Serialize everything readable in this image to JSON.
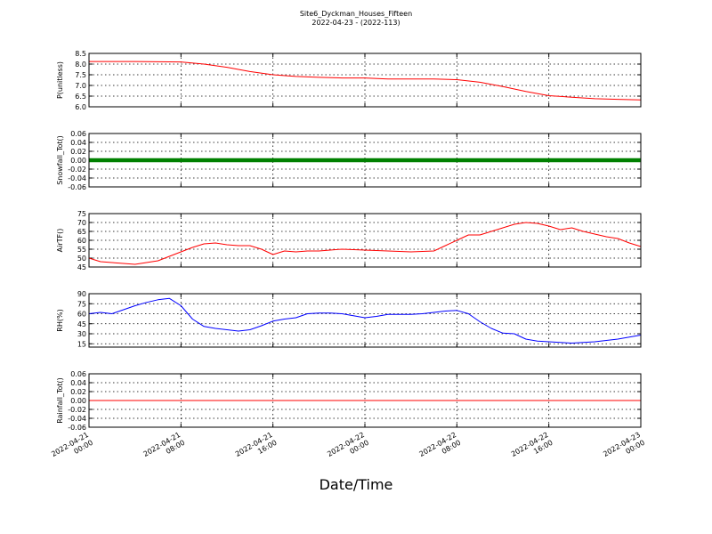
{
  "figure": {
    "title_line1": "Site6_Dyckman_Houses_Fifteen",
    "title_line2": "2022-04-23 - (2022-113)",
    "xlabel": "Date/Time"
  },
  "chart_data": [
    {
      "type": "line",
      "ylabel": "P(unitless)",
      "ylim": [
        6.0,
        8.5
      ],
      "yticks": [
        "6.0",
        "6.5",
        "7.0",
        "7.5",
        "8.0",
        "8.5"
      ],
      "color": "#ff0000",
      "grid": true,
      "x_hours": [
        0,
        4,
        8,
        10,
        12,
        14,
        16,
        18,
        20,
        22,
        24,
        26,
        30,
        32,
        34,
        36,
        38,
        40,
        42,
        44,
        46,
        48
      ],
      "values": [
        8.12,
        8.12,
        8.1,
        8.0,
        7.85,
        7.65,
        7.5,
        7.42,
        7.38,
        7.35,
        7.35,
        7.3,
        7.3,
        7.27,
        7.15,
        6.95,
        6.72,
        6.52,
        6.45,
        6.38,
        6.35,
        6.32
      ]
    },
    {
      "type": "line",
      "ylabel": "Snowfall_Tot()",
      "ylim": [
        -0.06,
        0.06
      ],
      "yticks": [
        "-0.06",
        "-0.04",
        "-0.02",
        "0.00",
        "0.02",
        "0.04",
        "0.06"
      ],
      "color": "#008000",
      "marker": true,
      "grid": true,
      "x_hours": [
        0,
        48
      ],
      "values": [
        0.0,
        0.0
      ]
    },
    {
      "type": "line",
      "ylabel": "AirTF()",
      "ylim": [
        45,
        75
      ],
      "yticks": [
        "45",
        "50",
        "55",
        "60",
        "65",
        "70",
        "75"
      ],
      "color": "#ff0000",
      "grid": true,
      "x_hours": [
        0,
        1,
        2,
        4,
        6,
        7,
        8,
        9,
        10,
        11,
        12,
        13,
        14,
        15,
        16,
        17,
        18,
        19,
        20,
        22,
        24,
        26,
        28,
        30,
        31,
        32,
        33,
        34,
        35,
        36,
        37,
        38,
        39,
        40,
        41,
        42,
        43,
        44,
        45,
        46,
        47,
        48
      ],
      "values": [
        50,
        48,
        47.5,
        46.5,
        48.5,
        51,
        53.5,
        56,
        58,
        58.5,
        57.5,
        57,
        57,
        55,
        52,
        54,
        53.5,
        54,
        54,
        55,
        54.5,
        54,
        53.5,
        54,
        57,
        60,
        63,
        63,
        65,
        67,
        69,
        70,
        69.5,
        68,
        66,
        67,
        65,
        63.5,
        62,
        61,
        58.5,
        56.5
      ]
    },
    {
      "type": "line",
      "ylabel": "RH(%)",
      "ylim": [
        10,
        90
      ],
      "yticks": [
        "15",
        "30",
        "45",
        "60",
        "75",
        "90"
      ],
      "color": "#0000ff",
      "grid": true,
      "x_hours": [
        0,
        1,
        2,
        3,
        4,
        5,
        6,
        7,
        8,
        9,
        10,
        11,
        12,
        13,
        14,
        15,
        16,
        17,
        18,
        19,
        20,
        21,
        22,
        23,
        24,
        25,
        26,
        27,
        28,
        29,
        30,
        31,
        32,
        33,
        34,
        35,
        36,
        37,
        38,
        39,
        40,
        41,
        42,
        43,
        44,
        45,
        46,
        47,
        48
      ],
      "values": [
        60,
        62,
        60,
        66,
        72,
        77,
        81,
        83,
        72,
        52,
        41,
        38,
        36,
        34,
        36,
        42,
        49,
        52,
        54,
        60,
        61,
        61,
        60,
        57,
        54,
        56,
        59,
        59,
        59,
        60,
        62,
        64,
        65,
        60,
        48,
        38,
        31,
        30,
        22,
        19,
        18,
        17,
        16,
        17,
        18,
        20,
        22,
        25,
        28
      ]
    },
    {
      "type": "line",
      "ylabel": "Rainfall_Tot()",
      "ylim": [
        -0.06,
        0.06
      ],
      "yticks": [
        "-0.06",
        "-0.04",
        "-0.02",
        "0.00",
        "0.02",
        "0.04",
        "0.06"
      ],
      "color": "#ff0000",
      "grid": true,
      "x_hours": [
        0,
        48
      ],
      "values": [
        0.0,
        0.0
      ]
    }
  ],
  "x_axis": {
    "ticks": [
      {
        "hour": 0,
        "line1": "2022-04-21",
        "line2": "00:00"
      },
      {
        "hour": 8,
        "line1": "2022-04-21",
        "line2": "08:00"
      },
      {
        "hour": 16,
        "line1": "2022-04-21",
        "line2": "16:00"
      },
      {
        "hour": 24,
        "line1": "2022-04-22",
        "line2": "00:00"
      },
      {
        "hour": 32,
        "line1": "2022-04-22",
        "line2": "08:00"
      },
      {
        "hour": 40,
        "line1": "2022-04-22",
        "line2": "16:00"
      },
      {
        "hour": 48,
        "line1": "2022-04-23",
        "line2": "00:00"
      }
    ],
    "range_hours": [
      0,
      48
    ]
  }
}
